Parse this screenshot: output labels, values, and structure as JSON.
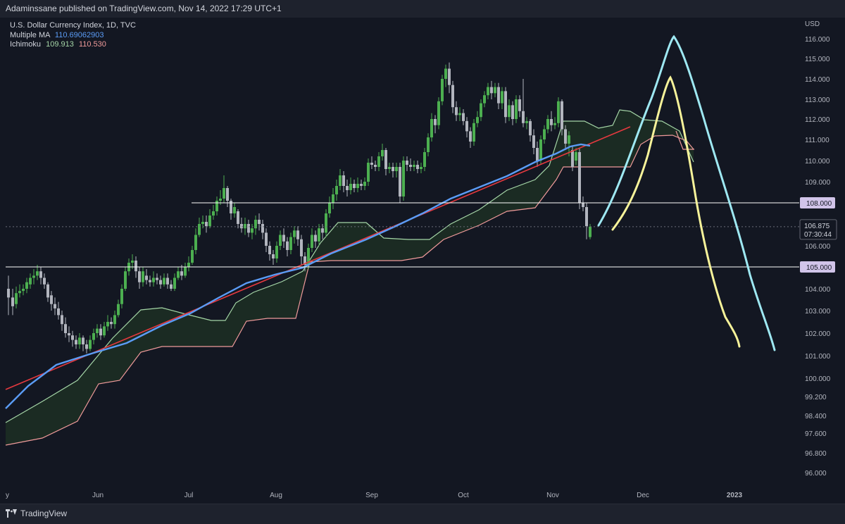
{
  "header": {
    "published": "Adaminssane published on TradingView.com, Nov 14, 2022 17:29 UTC+1"
  },
  "legend": {
    "symbol": "U.S. Dollar Currency Index, 1D, TVC",
    "ma_label": "Multiple MA",
    "ma_value": "110.69062903",
    "ichimoku_label": "Ichimoku",
    "ichimoku_value1": "109.913",
    "ichimoku_value2": "110.530"
  },
  "footer": {
    "brand": "TradingView"
  },
  "chart_data": {
    "type": "candlestick",
    "currency_label": "USD",
    "y_ticks": [
      "116.000",
      "115.000",
      "114.000",
      "113.000",
      "112.000",
      "111.000",
      "110.000",
      "109.000",
      "108.000",
      "107.000",
      "106.000",
      "105.000",
      "104.000",
      "103.000",
      "102.000",
      "101.000",
      "100.000",
      "99.200",
      "98.400",
      "97.600",
      "96.800",
      "96.000"
    ],
    "x_ticks": [
      "y",
      "Jun",
      "Jul",
      "Aug",
      "Sep",
      "Oct",
      "Nov",
      "Dec",
      "2023"
    ],
    "horizontal_levels": [
      {
        "label": "108.000",
        "value": 108.0
      },
      {
        "label": "105.000",
        "value": 105.0
      }
    ],
    "current_price": {
      "label": "106.875",
      "countdown": "07:30:44",
      "value": 106.875
    },
    "colors": {
      "background": "#131722",
      "bull": "#4caf50",
      "bear": "#b2b5be",
      "ma": "#5b9cf6",
      "trend": "#e5393f",
      "cloud_fill": "#1d2e24",
      "span_a": "#a5d6a7",
      "span_b": "#ef9a9a",
      "level": "#ffffff",
      "projection_cyan": "#9ee8f2",
      "projection_yellow": "#f7f39a"
    },
    "grid": false
  }
}
